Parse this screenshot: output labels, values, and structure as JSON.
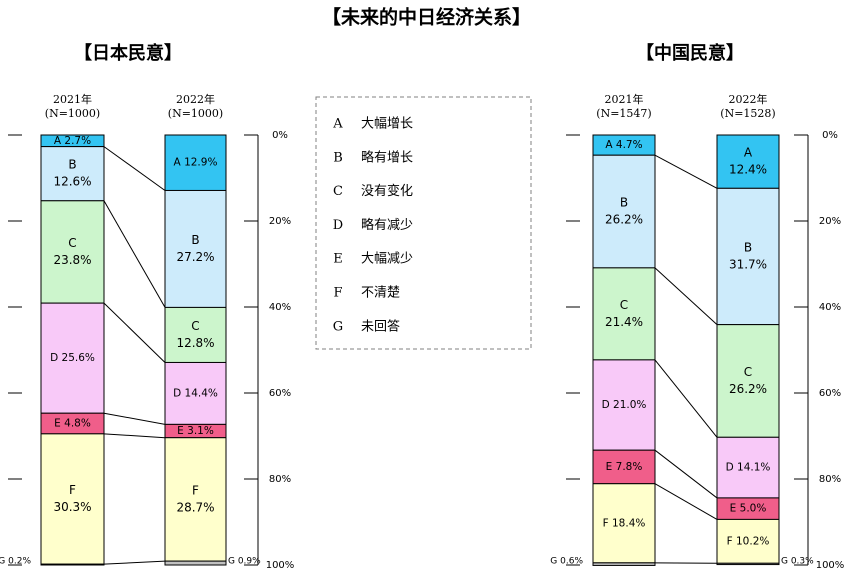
{
  "title": "【未来的中日经济关系】",
  "legend": [
    {
      "code": "A",
      "label": "大幅增长"
    },
    {
      "code": "B",
      "label": "略有增长"
    },
    {
      "code": "C",
      "label": "没有变化"
    },
    {
      "code": "D",
      "label": "略有减少"
    },
    {
      "code": "E",
      "label": "大幅减少"
    },
    {
      "code": "F",
      "label": "不清楚"
    },
    {
      "code": "G",
      "label": "未回答"
    }
  ],
  "colors": {
    "A": "#33c4f2",
    "B": "#cdebfb",
    "C": "#ccf5cc",
    "D": "#f8c9f8",
    "E": "#f05e8a",
    "F": "#ffffcc",
    "G": "#c0c0c0",
    "border": "#000000",
    "legend_border": "#808080"
  },
  "chart_data": [
    {
      "type": "bar",
      "stacked": true,
      "title": "【日本民意】",
      "categories": [
        "2021年\n(N=1000)",
        "2022年\n(N=1000)"
      ],
      "axis_ticks": [
        "0%",
        "20%",
        "40%",
        "60%",
        "80%",
        "100%"
      ],
      "ylim": [
        0,
        100
      ],
      "series": [
        {
          "name": "A",
          "values": [
            2.7,
            12.9
          ]
        },
        {
          "name": "B",
          "values": [
            12.6,
            27.2
          ]
        },
        {
          "name": "C",
          "values": [
            23.8,
            12.8
          ]
        },
        {
          "name": "D",
          "values": [
            25.6,
            14.4
          ]
        },
        {
          "name": "E",
          "values": [
            4.8,
            3.1
          ]
        },
        {
          "name": "F",
          "values": [
            30.3,
            28.7
          ]
        },
        {
          "name": "G",
          "values": [
            0.2,
            0.9
          ]
        }
      ],
      "labels": [
        [
          "A 2.7%",
          "B\n12.6%",
          "C\n23.8%",
          "D 25.6%",
          "E 4.8%",
          "F\n30.3%",
          "G 0.2%"
        ],
        [
          "A 12.9%",
          "B\n27.2%",
          "C\n12.8%",
          "D 14.4%",
          "E 3.1%",
          "F\n28.7%",
          "G 0.9%"
        ]
      ]
    },
    {
      "type": "bar",
      "stacked": true,
      "title": "【中国民意】",
      "categories": [
        "2021年\n(N=1547)",
        "2022年\n(N=1528)"
      ],
      "axis_ticks": [
        "0%",
        "20%",
        "40%",
        "60%",
        "80%",
        "100%"
      ],
      "ylim": [
        0,
        100
      ],
      "series": [
        {
          "name": "A",
          "values": [
            4.7,
            12.4
          ]
        },
        {
          "name": "B",
          "values": [
            26.2,
            31.7
          ]
        },
        {
          "name": "C",
          "values": [
            21.4,
            26.2
          ]
        },
        {
          "name": "D",
          "values": [
            21.0,
            14.1
          ]
        },
        {
          "name": "E",
          "values": [
            7.8,
            5.0
          ]
        },
        {
          "name": "F",
          "values": [
            18.4,
            10.2
          ]
        },
        {
          "name": "G",
          "values": [
            0.6,
            0.3
          ]
        }
      ],
      "labels": [
        [
          "A 4.7%",
          "B\n26.2%",
          "C\n21.4%",
          "D 21.0%",
          "E 7.8%",
          "F 18.4%",
          "G 0.6%"
        ],
        [
          "A\n12.4%",
          "B\n31.7%",
          "C\n26.2%",
          "D 14.1%",
          "E 5.0%",
          "F 10.2%",
          "G 0.3%"
        ]
      ]
    }
  ]
}
